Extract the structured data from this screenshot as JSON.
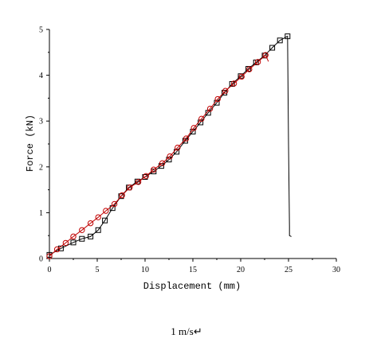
{
  "chart_data": {
    "type": "line",
    "xlabel": "Displacement (mm)",
    "ylabel": "Force (kN)",
    "xlim": [
      0,
      30
    ],
    "ylim": [
      0,
      5
    ],
    "xticks": [
      0,
      5,
      10,
      15,
      20,
      25,
      30
    ],
    "yticks": [
      0,
      1,
      2,
      3,
      4,
      5
    ],
    "grid": false,
    "legend": "none",
    "series": [
      {
        "color": "#000000",
        "marker": "square",
        "x": [
          0,
          1.2,
          2.5,
          3.4,
          4.3,
          5.1,
          5.8,
          6.6,
          7.5,
          8.3,
          9.2,
          10.0,
          10.9,
          11.7,
          12.5,
          13.3,
          14.2,
          15.0,
          15.8,
          16.6,
          17.5,
          18.3,
          19.1,
          20.0,
          20.8,
          21.6,
          22.5,
          23.3,
          24.1,
          24.9,
          25.0,
          25.1,
          25.1,
          25.3
        ],
        "y": [
          0.08,
          0.22,
          0.35,
          0.43,
          0.48,
          0.62,
          0.83,
          1.1,
          1.36,
          1.55,
          1.68,
          1.78,
          1.9,
          2.02,
          2.16,
          2.33,
          2.57,
          2.77,
          2.97,
          3.18,
          3.4,
          3.62,
          3.81,
          3.98,
          4.14,
          4.28,
          4.43,
          4.6,
          4.76,
          4.85,
          2.5,
          0.7,
          0.5,
          0.48
        ],
        "markers_shown": 30
      },
      {
        "color": "#c00000",
        "marker": "circle",
        "x": [
          0,
          0.8,
          1.7,
          2.5,
          3.4,
          4.3,
          5.1,
          5.9,
          6.8,
          7.6,
          8.4,
          9.3,
          10.1,
          10.9,
          11.8,
          12.6,
          13.4,
          14.3,
          15.1,
          15.9,
          16.8,
          17.6,
          18.4,
          19.3,
          20.1,
          20.9,
          21.8,
          22.6,
          22.9
        ],
        "y": [
          0.05,
          0.2,
          0.34,
          0.48,
          0.62,
          0.77,
          0.9,
          1.04,
          1.19,
          1.38,
          1.55,
          1.67,
          1.8,
          1.94,
          2.08,
          2.23,
          2.42,
          2.62,
          2.85,
          3.05,
          3.27,
          3.48,
          3.66,
          3.82,
          3.97,
          4.13,
          4.29,
          4.44,
          4.3
        ],
        "markers_shown": 28
      }
    ]
  },
  "caption": "1 m/s↵"
}
